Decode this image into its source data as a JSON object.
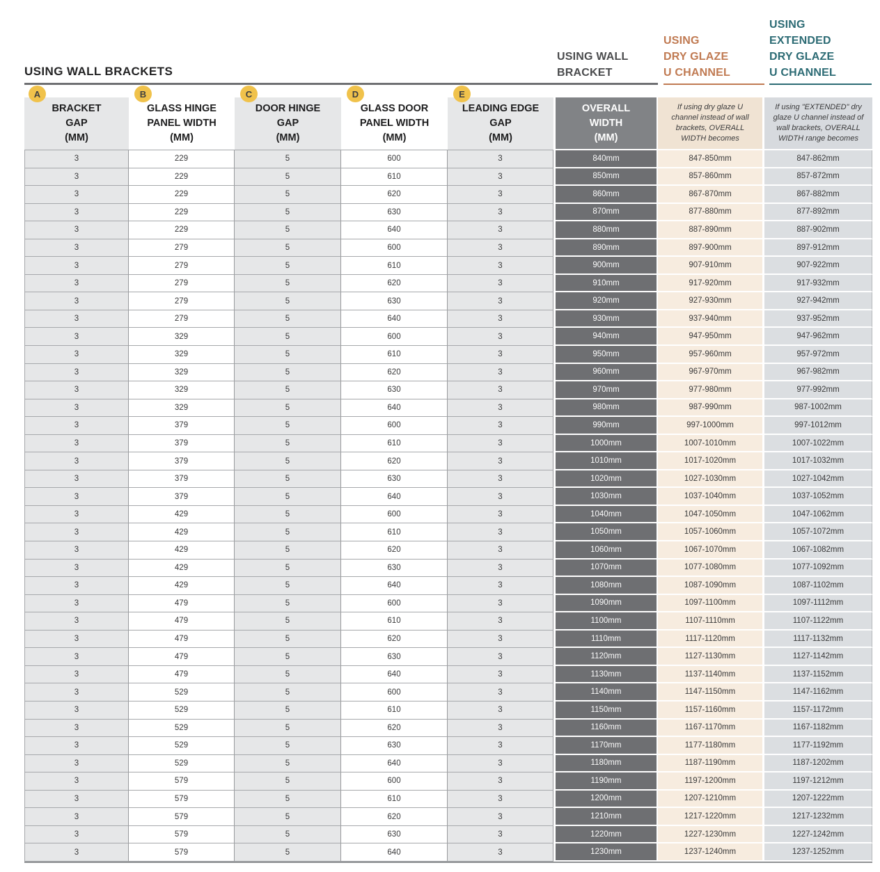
{
  "page_title": "USING WALL BRACKETS",
  "section_headers": {
    "wall_bracket": "USING WALL\nBRACKET",
    "dry_glaze": "USING\nDRY GLAZE\nU CHANNEL",
    "extended_dry_glaze": "USING\nEXTENDED\nDRY GLAZE\nU CHANNEL"
  },
  "colors": {
    "accent_orange": "#c07a52",
    "accent_teal": "#2c6b74",
    "badge_yellow": "#f0c24b",
    "dark_cell_gray": "#6e6f72",
    "tan_cell": "#f7ecdf",
    "light_gray_cell": "#e6e7e8",
    "extended_cell_gray": "#dbdee1"
  },
  "table": {
    "badges": [
      "A",
      "B",
      "C",
      "D",
      "E"
    ],
    "col_keys": [
      "bracket-gap",
      "glass-hinge-panel-width",
      "door-hinge-gap",
      "glass-door-panel-width",
      "leading-edge-gap",
      "overall-width",
      "dry-glaze-width",
      "extended-dry-glaze-width"
    ],
    "columns": [
      {
        "label": "BRACKET\nGAP\n(MM)"
      },
      {
        "label": "GLASS HINGE\nPANEL WIDTH\n(MM)"
      },
      {
        "label": "DOOR HINGE\nGAP\n(MM)"
      },
      {
        "label": "GLASS DOOR\nPANEL WIDTH\n(MM)"
      },
      {
        "label": "LEADING EDGE\nGAP\n(MM)"
      },
      {
        "label": "OVERALL\nWIDTH\n(MM)"
      },
      {
        "label": "If using dry glaze U channel instead of wall brackets, OVERALL WIDTH becomes"
      },
      {
        "label": "If using \"EXTENDED\" dry glaze U channel instead of wall brackets, OVERALL WIDTH range becomes"
      }
    ],
    "rows": [
      [
        "3",
        "229",
        "5",
        "600",
        "3",
        "840mm",
        "847-850mm",
        "847-862mm"
      ],
      [
        "3",
        "229",
        "5",
        "610",
        "3",
        "850mm",
        "857-860mm",
        "857-872mm"
      ],
      [
        "3",
        "229",
        "5",
        "620",
        "3",
        "860mm",
        "867-870mm",
        "867-882mm"
      ],
      [
        "3",
        "229",
        "5",
        "630",
        "3",
        "870mm",
        "877-880mm",
        "877-892mm"
      ],
      [
        "3",
        "229",
        "5",
        "640",
        "3",
        "880mm",
        "887-890mm",
        "887-902mm"
      ],
      [
        "3",
        "279",
        "5",
        "600",
        "3",
        "890mm",
        "897-900mm",
        "897-912mm"
      ],
      [
        "3",
        "279",
        "5",
        "610",
        "3",
        "900mm",
        "907-910mm",
        "907-922mm"
      ],
      [
        "3",
        "279",
        "5",
        "620",
        "3",
        "910mm",
        "917-920mm",
        "917-932mm"
      ],
      [
        "3",
        "279",
        "5",
        "630",
        "3",
        "920mm",
        "927-930mm",
        "927-942mm"
      ],
      [
        "3",
        "279",
        "5",
        "640",
        "3",
        "930mm",
        "937-940mm",
        "937-952mm"
      ],
      [
        "3",
        "329",
        "5",
        "600",
        "3",
        "940mm",
        "947-950mm",
        "947-962mm"
      ],
      [
        "3",
        "329",
        "5",
        "610",
        "3",
        "950mm",
        "957-960mm",
        "957-972mm"
      ],
      [
        "3",
        "329",
        "5",
        "620",
        "3",
        "960mm",
        "967-970mm",
        "967-982mm"
      ],
      [
        "3",
        "329",
        "5",
        "630",
        "3",
        "970mm",
        "977-980mm",
        "977-992mm"
      ],
      [
        "3",
        "329",
        "5",
        "640",
        "3",
        "980mm",
        "987-990mm",
        "987-1002mm"
      ],
      [
        "3",
        "379",
        "5",
        "600",
        "3",
        "990mm",
        "997-1000mm",
        "997-1012mm"
      ],
      [
        "3",
        "379",
        "5",
        "610",
        "3",
        "1000mm",
        "1007-1010mm",
        "1007-1022mm"
      ],
      [
        "3",
        "379",
        "5",
        "620",
        "3",
        "1010mm",
        "1017-1020mm",
        "1017-1032mm"
      ],
      [
        "3",
        "379",
        "5",
        "630",
        "3",
        "1020mm",
        "1027-1030mm",
        "1027-1042mm"
      ],
      [
        "3",
        "379",
        "5",
        "640",
        "3",
        "1030mm",
        "1037-1040mm",
        "1037-1052mm"
      ],
      [
        "3",
        "429",
        "5",
        "600",
        "3",
        "1040mm",
        "1047-1050mm",
        "1047-1062mm"
      ],
      [
        "3",
        "429",
        "5",
        "610",
        "3",
        "1050mm",
        "1057-1060mm",
        "1057-1072mm"
      ],
      [
        "3",
        "429",
        "5",
        "620",
        "3",
        "1060mm",
        "1067-1070mm",
        "1067-1082mm"
      ],
      [
        "3",
        "429",
        "5",
        "630",
        "3",
        "1070mm",
        "1077-1080mm",
        "1077-1092mm"
      ],
      [
        "3",
        "429",
        "5",
        "640",
        "3",
        "1080mm",
        "1087-1090mm",
        "1087-1102mm"
      ],
      [
        "3",
        "479",
        "5",
        "600",
        "3",
        "1090mm",
        "1097-1100mm",
        "1097-1112mm"
      ],
      [
        "3",
        "479",
        "5",
        "610",
        "3",
        "1100mm",
        "1107-1110mm",
        "1107-1122mm"
      ],
      [
        "3",
        "479",
        "5",
        "620",
        "3",
        "1110mm",
        "1117-1120mm",
        "1117-1132mm"
      ],
      [
        "3",
        "479",
        "5",
        "630",
        "3",
        "1120mm",
        "1127-1130mm",
        "1127-1142mm"
      ],
      [
        "3",
        "479",
        "5",
        "640",
        "3",
        "1130mm",
        "1137-1140mm",
        "1137-1152mm"
      ],
      [
        "3",
        "529",
        "5",
        "600",
        "3",
        "1140mm",
        "1147-1150mm",
        "1147-1162mm"
      ],
      [
        "3",
        "529",
        "5",
        "610",
        "3",
        "1150mm",
        "1157-1160mm",
        "1157-1172mm"
      ],
      [
        "3",
        "529",
        "5",
        "620",
        "3",
        "1160mm",
        "1167-1170mm",
        "1167-1182mm"
      ],
      [
        "3",
        "529",
        "5",
        "630",
        "3",
        "1170mm",
        "1177-1180mm",
        "1177-1192mm"
      ],
      [
        "3",
        "529",
        "5",
        "640",
        "3",
        "1180mm",
        "1187-1190mm",
        "1187-1202mm"
      ],
      [
        "3",
        "579",
        "5",
        "600",
        "3",
        "1190mm",
        "1197-1200mm",
        "1197-1212mm"
      ],
      [
        "3",
        "579",
        "5",
        "610",
        "3",
        "1200mm",
        "1207-1210mm",
        "1207-1222mm"
      ],
      [
        "3",
        "579",
        "5",
        "620",
        "3",
        "1210mm",
        "1217-1220mm",
        "1217-1232mm"
      ],
      [
        "3",
        "579",
        "5",
        "630",
        "3",
        "1220mm",
        "1227-1230mm",
        "1227-1242mm"
      ],
      [
        "3",
        "579",
        "5",
        "640",
        "3",
        "1230mm",
        "1237-1240mm",
        "1237-1252mm"
      ]
    ]
  }
}
